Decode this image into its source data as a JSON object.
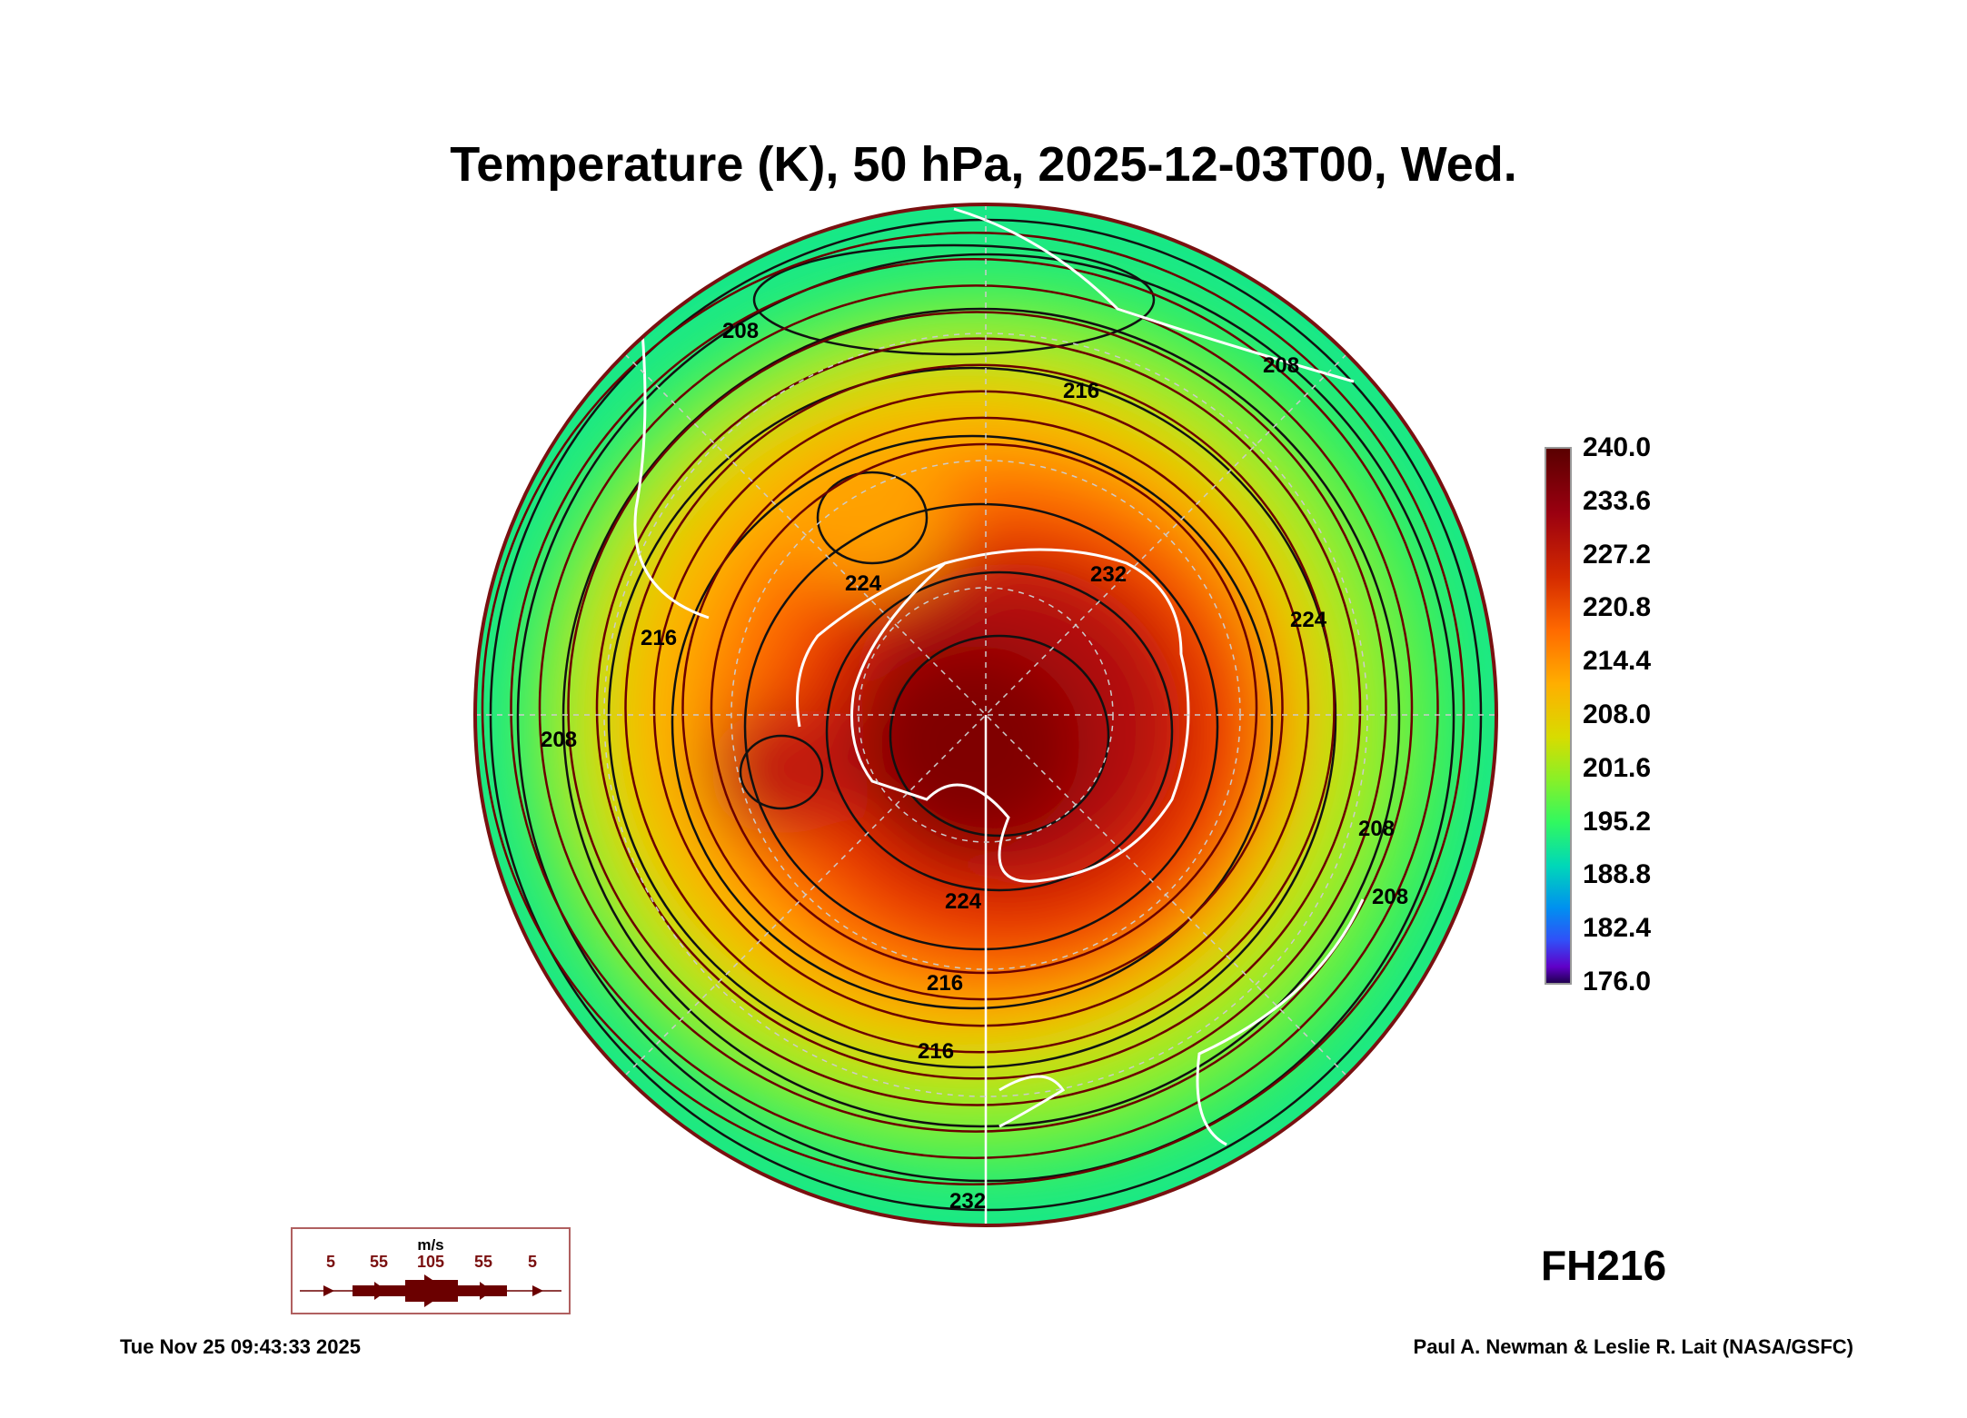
{
  "title": "Temperature (K), 50 hPa, 2025-12-03T00, Wed.",
  "colorbar": {
    "ticks": [
      "240.0",
      "233.6",
      "227.2",
      "220.8",
      "214.4",
      "208.0",
      "201.6",
      "195.2",
      "188.8",
      "182.4",
      "176.0"
    ],
    "min": 176.0,
    "max": 240.0
  },
  "map": {
    "contour_labels": [
      "208",
      "208",
      "216",
      "208",
      "216",
      "224",
      "224",
      "232",
      "224",
      "216",
      "216",
      "208",
      "208",
      "232"
    ],
    "projection": "south-polar-stereographic",
    "coastline_color": "#ffffff",
    "streamline_color": "#6b0000"
  },
  "wind_legend": {
    "unit": "m/s",
    "labels": [
      "5",
      "55",
      "105",
      "55",
      "5"
    ]
  },
  "forecast_hour": "FH216",
  "timestamp": "Tue Nov 25 09:43:33 2025",
  "credit": "Paul A. Newman & Leslie R. Lait (NASA/GSFC)"
}
